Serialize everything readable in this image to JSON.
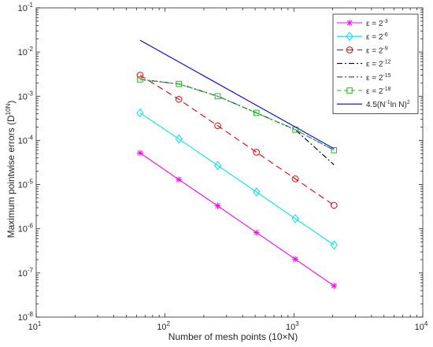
{
  "chart_data": {
    "type": "line",
    "xlabel": "Number of mesh points (10×N)",
    "ylabel": "Maximum pointwise errors (D",
    "ylabel_sup": "10N",
    "ylabel_end": ")",
    "xscale": "log",
    "yscale": "log",
    "xlim": [
      10,
      10000
    ],
    "ylim": [
      1e-08,
      0.1
    ],
    "grid": false,
    "legend_position": "top-right",
    "x_ticks": [
      {
        "value": 10,
        "base": "10",
        "exp": "1"
      },
      {
        "value": 100,
        "base": "10",
        "exp": "2"
      },
      {
        "value": 1000,
        "base": "10",
        "exp": "3"
      },
      {
        "value": 10000,
        "base": "10",
        "exp": "4"
      }
    ],
    "y_ticks": [
      {
        "value": 1e-08,
        "base": "10",
        "exp": "-8"
      },
      {
        "value": 1e-07,
        "base": "10",
        "exp": "-7"
      },
      {
        "value": 1e-06,
        "base": "10",
        "exp": "-6"
      },
      {
        "value": 1e-05,
        "base": "10",
        "exp": "-5"
      },
      {
        "value": 0.0001,
        "base": "10",
        "exp": "-4"
      },
      {
        "value": 0.001,
        "base": "10",
        "exp": "-3"
      },
      {
        "value": 0.01,
        "base": "10",
        "exp": "-2"
      },
      {
        "value": 0.1,
        "base": "10",
        "exp": "-1"
      }
    ],
    "x": [
      64,
      128,
      256,
      512,
      1024,
      2048
    ],
    "series": [
      {
        "name": "ε = 2",
        "name_sup": "-3",
        "color": "#ff00ff",
        "dash": "",
        "marker": "star",
        "values": [
          5.2e-05,
          1.3e-05,
          3.3e-06,
          8.2e-07,
          2.05e-07,
          5.1e-08
        ]
      },
      {
        "name": "ε = 2",
        "name_sup": "-6",
        "color": "#00e5ee",
        "dash": "",
        "marker": "diamond",
        "values": [
          0.00042,
          0.000108,
          2.7e-05,
          6.8e-06,
          1.7e-06,
          4.3e-07
        ]
      },
      {
        "name": "ε = 2",
        "name_sup": "-9",
        "color": "#e8000b",
        "dash": "8,5",
        "marker": "circle",
        "values": [
          0.003,
          0.00085,
          0.000215,
          5.4e-05,
          1.35e-05,
          3.4e-06
        ]
      },
      {
        "name": "ε = 2",
        "name_sup": "-12",
        "color": "#000000",
        "dash": "7,3,2,3",
        "marker": "none",
        "values": [
          0.0024,
          0.0019,
          0.001,
          0.00042,
          0.000175,
          2.8e-05
        ]
      },
      {
        "name": "ε = 2",
        "name_sup": "-15",
        "color": "#2b2bd4",
        "dash": "7,3,2,3",
        "marker": "none",
        "values": [
          0.0024,
          0.0019,
          0.001,
          0.00042,
          0.000175,
          6e-05
        ]
      },
      {
        "name": "ε = 2",
        "name_sup": "-18",
        "color": "#22bb22",
        "dash": "5,4",
        "marker": "square",
        "values": [
          0.0024,
          0.0019,
          0.001,
          0.00042,
          0.000175,
          6e-05
        ]
      },
      {
        "name": "4.5(N",
        "name_sup": "-1",
        "name_mid": "ln N)",
        "name_sup2": "2",
        "color": "#0000dd",
        "dash": "",
        "marker": "none",
        "values": [
          0.0185,
          null,
          null,
          null,
          null,
          6.5e-05
        ]
      }
    ]
  }
}
